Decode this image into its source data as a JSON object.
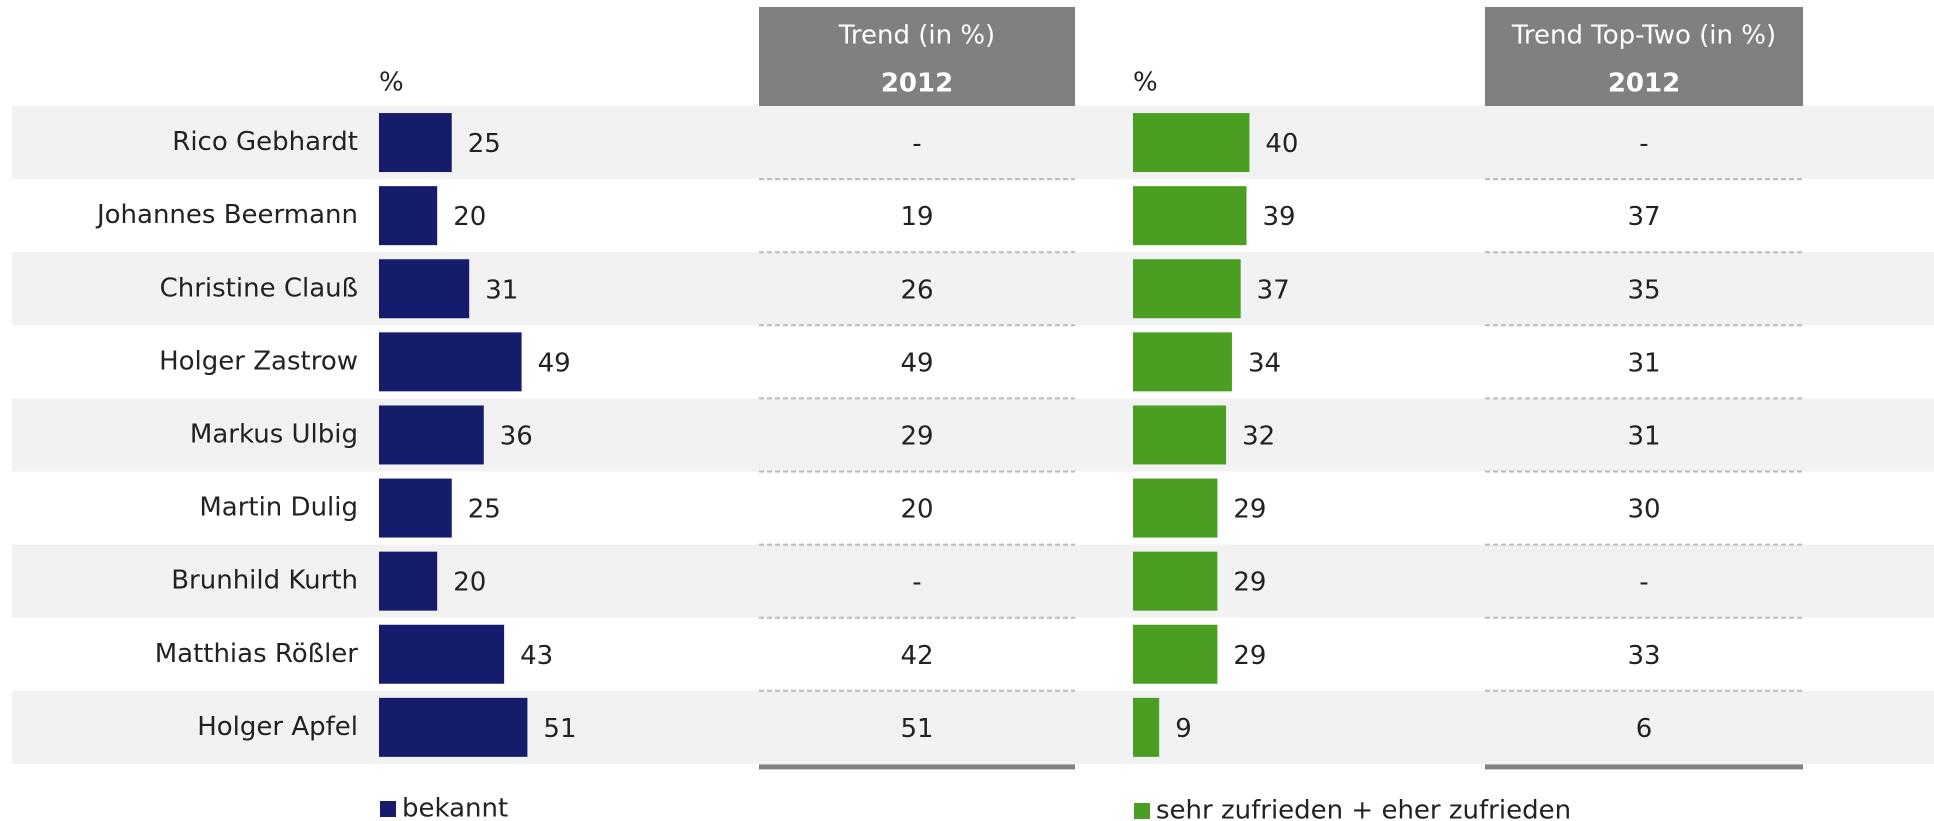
{
  "chart_data": [
    {
      "type": "bar",
      "orientation": "horizontal",
      "unit_label": "%",
      "categories": [
        "Rico Gebhardt",
        "Johannes Beermann",
        "Christine Clauß",
        "Holger Zastrow",
        "Markus Ulbig",
        "Martin Dulig",
        "Brunhild Kurth",
        "Matthias Rößler",
        "Holger Apfel"
      ],
      "series": [
        {
          "name": "bekannt",
          "color": "#141c6b",
          "values": [
            25,
            20,
            31,
            49,
            36,
            25,
            20,
            43,
            51
          ]
        }
      ],
      "trend": {
        "header": "Trend (in %)",
        "year": "2012",
        "values": [
          "-",
          19,
          26,
          49,
          29,
          20,
          "-",
          42,
          51
        ]
      }
    },
    {
      "type": "bar",
      "orientation": "horizontal",
      "unit_label": "%",
      "series": [
        {
          "name": "sehr zufrieden + eher zufrieden",
          "color": "#4a9e22",
          "values": [
            40,
            39,
            37,
            34,
            32,
            29,
            29,
            29,
            9
          ]
        }
      ],
      "trend": {
        "header": "Trend Top-Two (in %)",
        "year": "2012",
        "values": [
          "-",
          37,
          35,
          31,
          31,
          30,
          "-",
          33,
          6
        ]
      }
    }
  ]
}
